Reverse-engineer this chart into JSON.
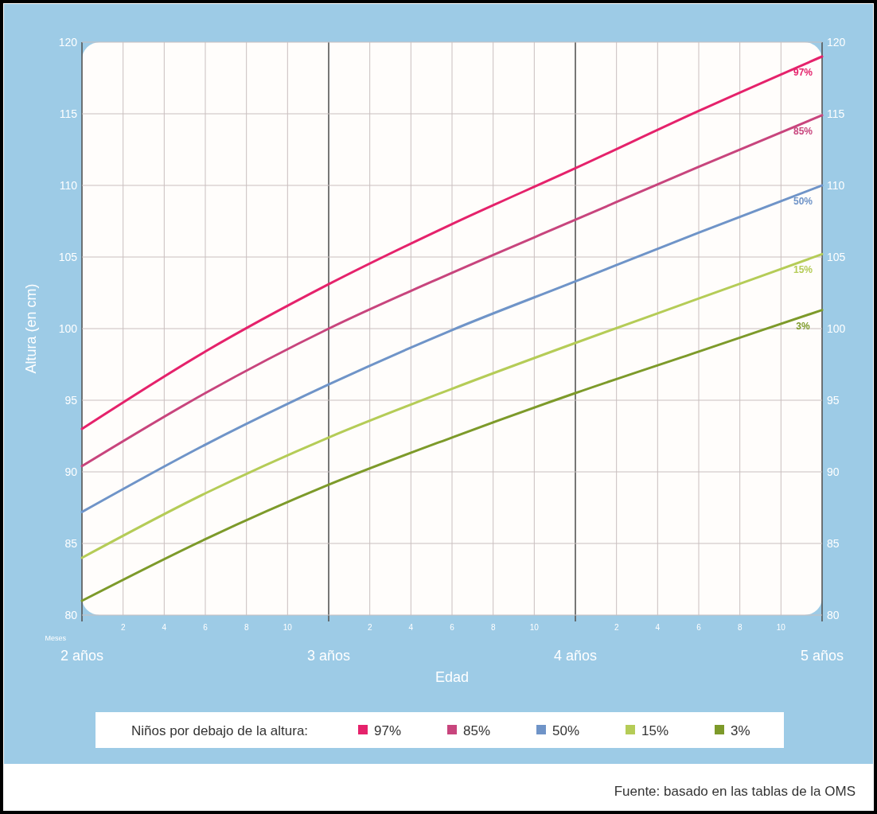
{
  "chart_data": {
    "type": "line",
    "xlabel": "Edad",
    "ylabel": "Altura (en cm)",
    "legend_title": "Niños por debajo de la altura:",
    "legend": "bottom",
    "grid": true,
    "annotations": [
      "Meses",
      "Fuente: basado en las tablas de la OMS",
      "2",
      "4",
      "6",
      "8",
      "10",
      "2",
      "4",
      "6",
      "8",
      "10",
      "2",
      "4",
      "6",
      "8",
      "10"
    ],
    "x": [
      2,
      2.5,
      3,
      3.5,
      4,
      4.5,
      5
    ],
    "xlim": [
      2,
      5
    ],
    "xticks": [
      {
        "value": 2,
        "label": "2 años"
      },
      {
        "value": 3,
        "label": "3 años"
      },
      {
        "value": 4,
        "label": "4 años"
      },
      {
        "value": 5,
        "label": "5 años"
      }
    ],
    "ylim": [
      80,
      120
    ],
    "yticks": [
      80,
      85,
      90,
      95,
      100,
      105,
      110,
      115,
      120
    ],
    "y2lim": [
      80,
      120
    ],
    "y2ticks": [
      80,
      85,
      90,
      95,
      100,
      105,
      110,
      115,
      120
    ],
    "series": [
      {
        "name": "97%",
        "color": "#e5226b",
        "values": [
          93.0,
          98.4,
          103.1,
          107.3,
          111.2,
          115.2,
          119.0
        ]
      },
      {
        "name": "85%",
        "color": "#c8457d",
        "values": [
          90.4,
          95.5,
          100.0,
          103.9,
          107.6,
          111.3,
          114.9
        ]
      },
      {
        "name": "50%",
        "color": "#6f94c8",
        "values": [
          87.2,
          91.9,
          96.1,
          99.9,
          103.3,
          106.7,
          110.0
        ]
      },
      {
        "name": "15%",
        "color": "#b5cc57",
        "values": [
          84.0,
          88.5,
          92.4,
          95.8,
          99.0,
          102.1,
          105.2
        ]
      },
      {
        "name": "3%",
        "color": "#7d9a2a",
        "values": [
          81.0,
          85.3,
          89.1,
          92.4,
          95.5,
          98.4,
          101.3
        ]
      }
    ]
  }
}
